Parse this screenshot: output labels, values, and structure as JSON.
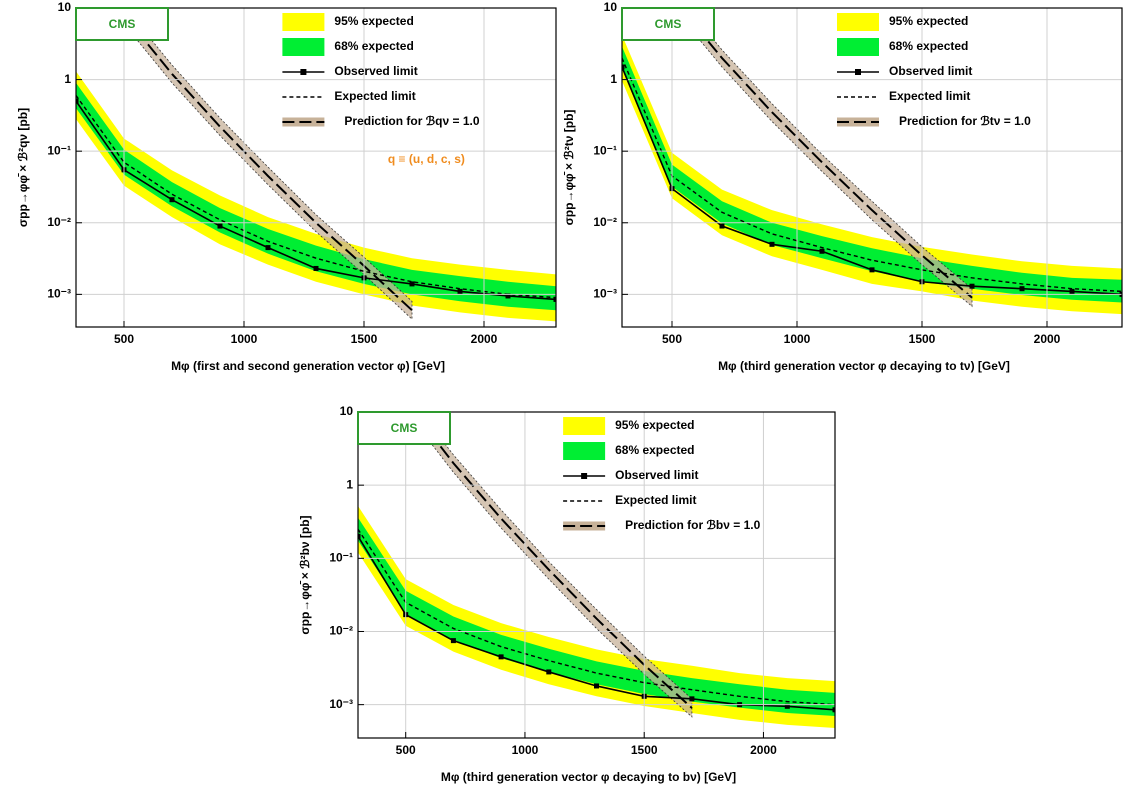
{
  "chart_data": [
    {
      "type": "line",
      "annotations": [
        "CMS",
        "q ≡ (u, d, c, s)"
      ],
      "xlabel": "Mφ (first and second generation vector φ) [GeV]",
      "ylabel": "σpp→φφ̄ × ℬ²qν [pb]",
      "log_y": true,
      "grid": true,
      "legend": "upper right",
      "xlim": [
        300,
        2300
      ],
      "ylim": [
        0.00035,
        10
      ],
      "xticks": [
        500,
        1000,
        1500,
        2000
      ],
      "yticks": [
        {
          "value": 0.001,
          "label": "10⁻³"
        },
        {
          "value": 0.01,
          "label": "10⁻²"
        },
        {
          "value": 0.1,
          "label": "10⁻¹"
        },
        1,
        10
      ],
      "x": [
        300,
        500,
        700,
        900,
        1100,
        1300,
        1500,
        1700,
        1900,
        2100,
        2300
      ],
      "series": [
        {
          "name": "95% expected",
          "color": "#ffff00",
          "lower": [
            0.28,
            0.033,
            0.012,
            0.005,
            0.0026,
            0.0015,
            0.001,
            0.0007,
            0.00056,
            0.00047,
            0.00042
          ],
          "upper": [
            1.3,
            0.15,
            0.054,
            0.024,
            0.012,
            0.007,
            0.0045,
            0.0032,
            0.0026,
            0.0022,
            0.0019
          ]
        },
        {
          "name": "68% expected",
          "color": "#00ee33",
          "lower": [
            0.4,
            0.047,
            0.017,
            0.0073,
            0.0037,
            0.0021,
            0.0014,
            0.001,
            0.0008,
            0.00067,
            0.0006
          ],
          "upper": [
            0.9,
            0.105,
            0.037,
            0.016,
            0.0082,
            0.0048,
            0.0031,
            0.0022,
            0.0018,
            0.0015,
            0.0013
          ]
        },
        {
          "name": "Observed limit",
          "color": "#000000",
          "values": [
            0.5,
            0.055,
            0.021,
            0.009,
            0.0045,
            0.0023,
            0.0017,
            0.0014,
            0.0011,
            0.00095,
            0.00085
          ]
        },
        {
          "name": "Expected limit",
          "color": "#000000",
          "values": [
            0.6,
            0.07,
            0.025,
            0.011,
            0.0055,
            0.0032,
            0.0021,
            0.0015,
            0.0012,
            0.001,
            0.0009
          ]
        },
        {
          "name": "Prediction for ℬqν = 1.0",
          "color": "#000000",
          "band_color": "#c7b299",
          "values": [
            null,
            8,
            1.2,
            0.22,
            0.045,
            0.01,
            0.0025,
            0.0006,
            null,
            null,
            null
          ],
          "lower": [
            null,
            6,
            0.9,
            0.165,
            0.034,
            0.0075,
            0.0019,
            0.00045,
            null,
            null,
            null
          ],
          "upper": [
            null,
            10.5,
            1.6,
            0.29,
            0.06,
            0.013,
            0.0033,
            0.0008,
            null,
            null,
            null
          ]
        }
      ]
    },
    {
      "type": "line",
      "annotations": [
        "CMS"
      ],
      "xlabel": "Mφ (third generation vector φ decaying to tν) [GeV]",
      "ylabel": "σpp→φφ̄ × ℬ²tν [pb]",
      "log_y": true,
      "grid": true,
      "legend": "upper right",
      "xlim": [
        300,
        2300
      ],
      "ylim": [
        0.00035,
        10
      ],
      "xticks": [
        500,
        1000,
        1500,
        2000
      ],
      "yticks": [
        {
          "value": 0.001,
          "label": "10⁻³"
        },
        {
          "value": 0.01,
          "label": "10⁻²"
        },
        {
          "value": 0.1,
          "label": "10⁻¹"
        },
        1,
        10
      ],
      "x": [
        300,
        500,
        700,
        900,
        1100,
        1300,
        1500,
        1700,
        1900,
        2100,
        2300
      ],
      "series": [
        {
          "name": "95% expected",
          "color": "#ffff00",
          "lower": [
            0.96,
            0.022,
            0.0067,
            0.0034,
            0.0022,
            0.0014,
            0.0011,
            0.00082,
            0.00067,
            0.00058,
            0.00053
          ],
          "upper": [
            4.2,
            0.095,
            0.029,
            0.015,
            0.0095,
            0.0063,
            0.0046,
            0.0036,
            0.0029,
            0.0025,
            0.0023
          ]
        },
        {
          "name": "68% expected",
          "color": "#00ee33",
          "lower": [
            1.4,
            0.032,
            0.0098,
            0.0049,
            0.0032,
            0.0021,
            0.0015,
            0.0012,
            0.00098,
            0.00084,
            0.00077
          ],
          "upper": [
            2.9,
            0.065,
            0.02,
            0.01,
            0.0065,
            0.0044,
            0.0032,
            0.0025,
            0.002,
            0.0017,
            0.0016
          ]
        },
        {
          "name": "Observed limit",
          "color": "#000000",
          "values": [
            1.5,
            0.03,
            0.009,
            0.005,
            0.004,
            0.0022,
            0.0015,
            0.0013,
            0.0012,
            0.0011,
            0.001
          ]
        },
        {
          "name": "Expected limit",
          "color": "#000000",
          "values": [
            2,
            0.045,
            0.014,
            0.007,
            0.0045,
            0.003,
            0.0022,
            0.0017,
            0.0014,
            0.0012,
            0.0011
          ]
        },
        {
          "name": "Prediction for ℬtν = 1.0",
          "color": "#000000",
          "band_color": "#c7b299",
          "values": [
            null,
            14,
            2,
            0.35,
            0.07,
            0.015,
            0.0035,
            0.0009,
            null,
            null,
            null
          ],
          "lower": [
            null,
            10.5,
            1.5,
            0.26,
            0.052,
            0.011,
            0.0026,
            0.00068,
            null,
            null,
            null
          ],
          "upper": [
            null,
            18,
            2.6,
            0.46,
            0.09,
            0.02,
            0.0046,
            0.0012,
            null,
            null,
            null
          ]
        }
      ]
    },
    {
      "type": "line",
      "annotations": [
        "CMS"
      ],
      "xlabel": "Mφ (third generation vector φ decaying to bν) [GeV]",
      "ylabel": "σpp→φφ̄ × ℬ²bν [pb]",
      "log_y": true,
      "grid": true,
      "legend": "upper right",
      "xlim": [
        300,
        2300
      ],
      "ylim": [
        0.00035,
        10
      ],
      "xticks": [
        500,
        1000,
        1500,
        2000
      ],
      "yticks": [
        {
          "value": 0.001,
          "label": "10⁻³"
        },
        {
          "value": 0.01,
          "label": "10⁻²"
        },
        {
          "value": 0.1,
          "label": "10⁻¹"
        },
        1,
        10
      ],
      "x": [
        300,
        500,
        700,
        900,
        1100,
        1300,
        1500,
        1700,
        1900,
        2100,
        2300
      ],
      "series": [
        {
          "name": "95% expected",
          "color": "#ffff00",
          "lower": [
            0.12,
            0.012,
            0.0053,
            0.003,
            0.0019,
            0.0013,
            0.00096,
            0.00077,
            0.00062,
            0.00053,
            0.00048
          ],
          "upper": [
            0.52,
            0.052,
            0.023,
            0.013,
            0.0084,
            0.0057,
            0.0042,
            0.0034,
            0.0027,
            0.0023,
            0.0021
          ]
        },
        {
          "name": "68% expected",
          "color": "#00ee33",
          "lower": [
            0.175,
            0.0175,
            0.0077,
            0.0043,
            0.0028,
            0.0019,
            0.0014,
            0.0011,
            0.00091,
            0.00077,
            0.0007
          ],
          "upper": [
            0.36,
            0.036,
            0.016,
            0.009,
            0.0058,
            0.0039,
            0.0029,
            0.0023,
            0.0019,
            0.0016,
            0.00145
          ]
        },
        {
          "name": "Observed limit",
          "color": "#000000",
          "values": [
            0.2,
            0.017,
            0.0075,
            0.0045,
            0.0028,
            0.0018,
            0.0013,
            0.0012,
            0.001,
            0.00095,
            0.00085
          ]
        },
        {
          "name": "Expected limit",
          "color": "#000000",
          "values": [
            0.25,
            0.025,
            0.011,
            0.0062,
            0.004,
            0.0027,
            0.002,
            0.0016,
            0.0013,
            0.0011,
            0.001
          ]
        },
        {
          "name": "Prediction for ℬbν = 1.0",
          "color": "#000000",
          "band_color": "#c7b299",
          "values": [
            null,
            14,
            2,
            0.35,
            0.07,
            0.015,
            0.0035,
            0.0009,
            null,
            null,
            null
          ],
          "lower": [
            null,
            10.5,
            1.5,
            0.26,
            0.052,
            0.011,
            0.0026,
            0.00068,
            null,
            null,
            null
          ],
          "upper": [
            null,
            18,
            2.6,
            0.46,
            0.09,
            0.02,
            0.0046,
            0.0012,
            null,
            null,
            null
          ]
        }
      ]
    }
  ]
}
